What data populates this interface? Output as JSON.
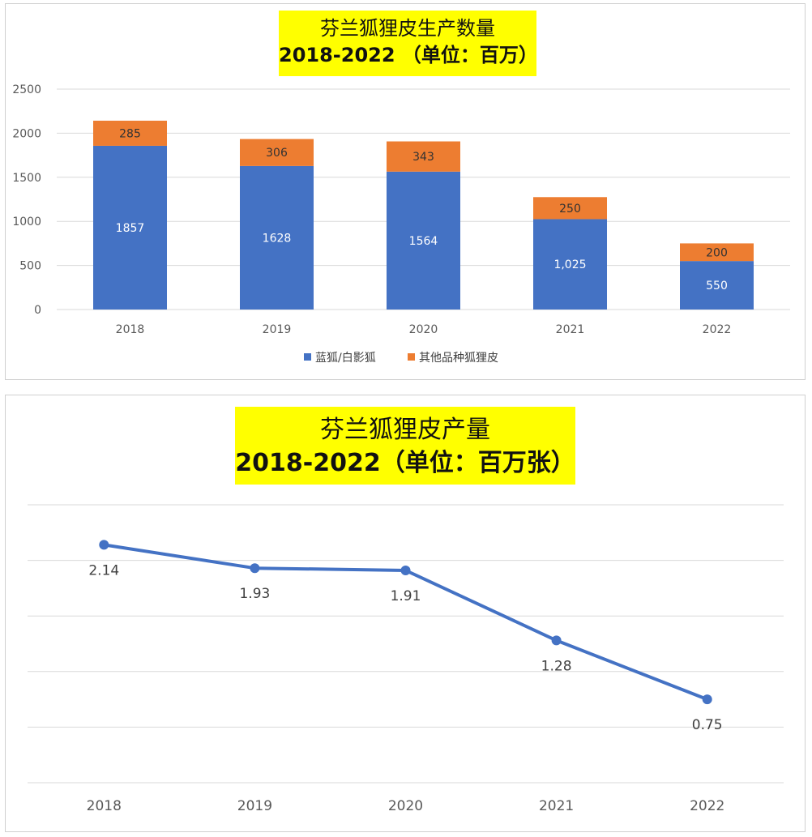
{
  "chart_data": [
    {
      "type": "bar",
      "stacked": true,
      "title_line1": "芬兰狐狸皮生产数量",
      "title_line2": "2018-2022 （单位：百万）",
      "categories": [
        "2018",
        "2019",
        "2020",
        "2021",
        "2022"
      ],
      "series": [
        {
          "name": "蓝狐/白影狐",
          "values": [
            1857,
            1628,
            1564,
            1025,
            550
          ],
          "labels": [
            "1857",
            "1628",
            "1564",
            "1,025",
            "550"
          ],
          "color": "#4472c4"
        },
        {
          "name": "其他品种狐狸皮",
          "values": [
            285,
            306,
            343,
            250,
            200
          ],
          "labels": [
            "285",
            "306",
            "343",
            "250",
            "200"
          ],
          "color": "#ed7d31"
        }
      ],
      "ylim": [
        0,
        2500
      ],
      "yticks": [
        "0",
        "500",
        "1000",
        "1500",
        "2000",
        "2500"
      ],
      "grid": true,
      "legend": "bottom",
      "title_bg": "#ffff00"
    },
    {
      "type": "line",
      "title_line1": "芬兰狐狸皮产量",
      "title_line2": "2018-2022（单位：百万张）",
      "x": [
        "2018",
        "2019",
        "2020",
        "2021",
        "2022"
      ],
      "series": [
        {
          "values": [
            2.14,
            1.93,
            1.91,
            1.28,
            0.75
          ],
          "labels": [
            "2.14",
            "1.93",
            "1.91",
            "1.28",
            "0.75"
          ],
          "color": "#4472c4"
        }
      ],
      "ylim": [
        0,
        2.5
      ],
      "grid": true,
      "title_bg": "#ffff00"
    }
  ]
}
